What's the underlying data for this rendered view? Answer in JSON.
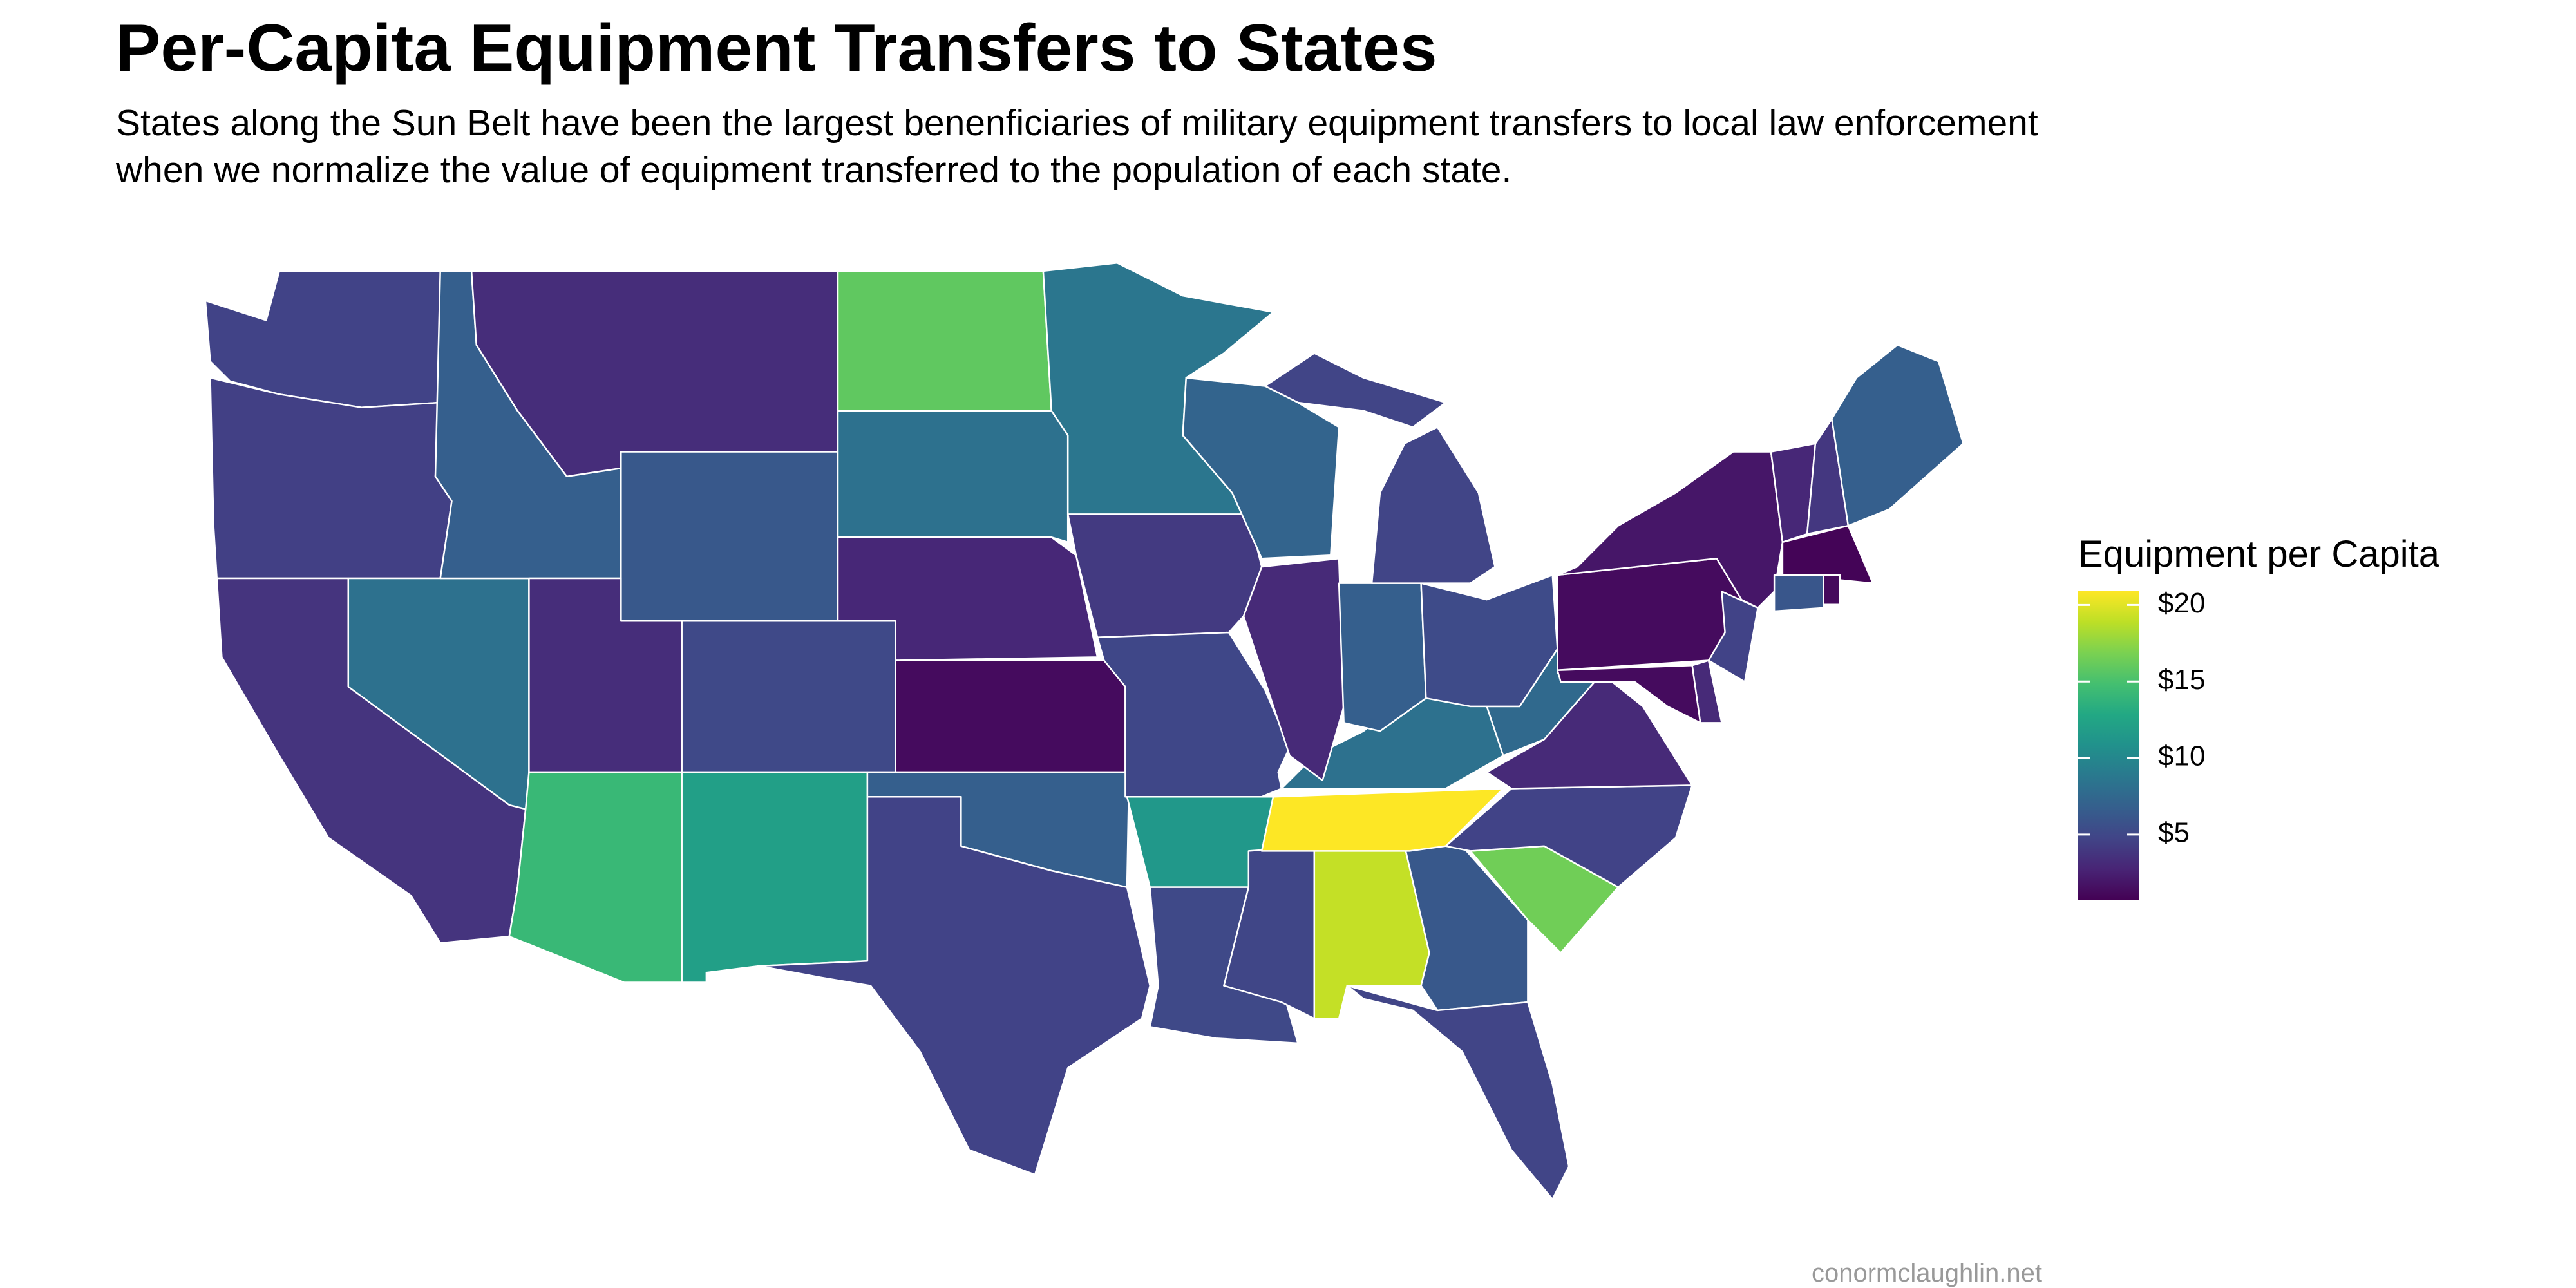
{
  "chart_data": {
    "type": "choropleth",
    "title": "Per-Capita Equipment Transfers to States",
    "subtitle": [
      "States along the Sun Belt have been the largest benenficiaries of military equipment transfers to local law enforcement",
      "when we normalize the value of equipment transferred to the population of each state."
    ],
    "legend_title": "Equipment per Capita",
    "colormap": "viridis",
    "colorlim": [
      0.7,
      20.9
    ],
    "colorticks": [
      {
        "value": 5,
        "label": "$5"
      },
      {
        "value": 10,
        "label": "$10"
      },
      {
        "value": 15,
        "label": "$15"
      },
      {
        "value": 20,
        "label": "$20"
      }
    ],
    "values": [
      4.7,
      4.5,
      3.7,
      8.2,
      6.8,
      3.3,
      6.2,
      3.3,
      5.1,
      14.2,
      12.0,
      15.9,
      8.2,
      2.9,
      1.3,
      6.8,
      4.7,
      8.6,
      4.1,
      5.0,
      11.4,
      5.1,
      4.9,
      19.1,
      6.2,
      4.8,
      16.5,
      4.7,
      20.9,
      8.2,
      3.1,
      7.6,
      3.1,
      6.8,
      5.3,
      4.8,
      7.2,
      1.3,
      1.9,
      4.7,
      3.1,
      1.3,
      2.9,
      3.9,
      6.8,
      0.9,
      6.1,
      1.2
    ],
    "footer": "conormclaughlin.net"
  }
}
